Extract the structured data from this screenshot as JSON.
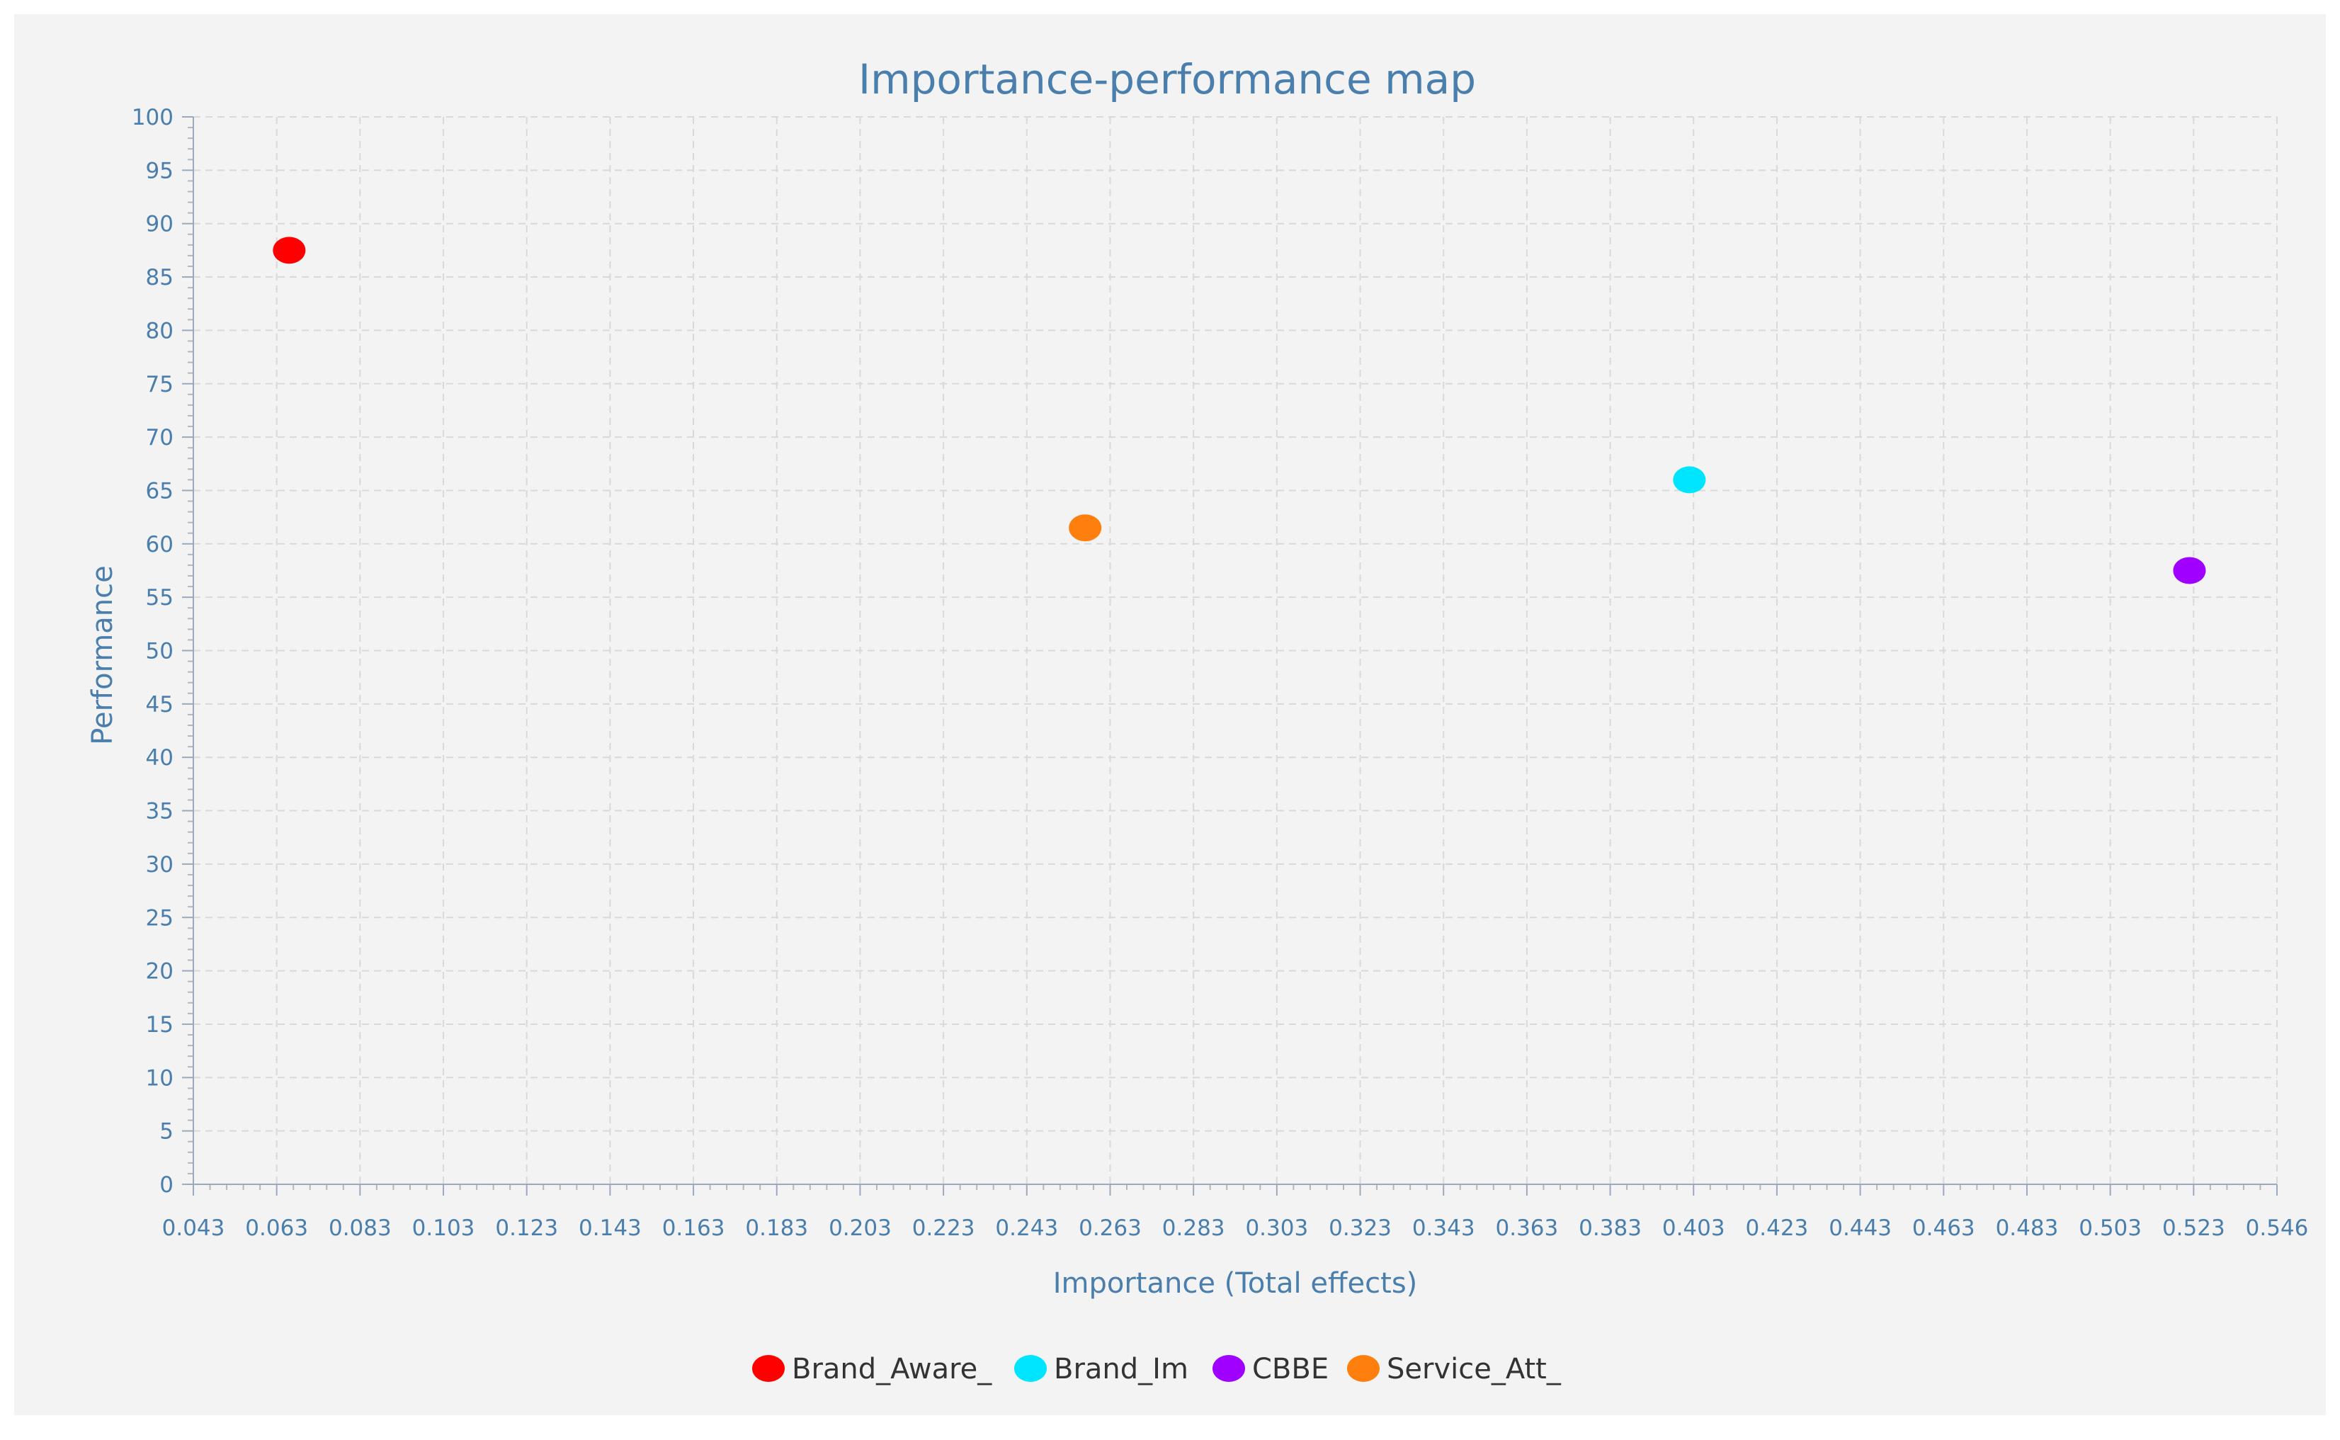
{
  "chart_data": {
    "type": "scatter",
    "title": "Importance-performance map",
    "xlabel": "Importance (Total effects)",
    "ylabel": "Performance",
    "xlim": [
      0.043,
      0.546
    ],
    "ylim": [
      0,
      100
    ],
    "x_ticks": [
      "0.043",
      "0.063",
      "0.083",
      "0.103",
      "0.123",
      "0.143",
      "0.163",
      "0.183",
      "0.203",
      "0.223",
      "0.243",
      "0.263",
      "0.283",
      "0.303",
      "0.323",
      "0.343",
      "0.363",
      "0.383",
      "0.403",
      "0.423",
      "0.443",
      "0.463",
      "0.483",
      "0.503",
      "0.523",
      "0.546"
    ],
    "y_ticks": [
      "0",
      "5",
      "10",
      "15",
      "20",
      "25",
      "30",
      "35",
      "40",
      "45",
      "50",
      "55",
      "60",
      "65",
      "70",
      "75",
      "80",
      "85",
      "90",
      "95",
      "100"
    ],
    "grid": true,
    "legend_position": "bottom-center",
    "series": [
      {
        "name": "Brand_Aware_",
        "color": "#ff0000",
        "x": 0.066,
        "y": 87.5
      },
      {
        "name": "Brand_Im",
        "color": "#00e5ff",
        "x": 0.402,
        "y": 66.0
      },
      {
        "name": "CBBE",
        "color": "#a000ff",
        "x": 0.522,
        "y": 57.5
      },
      {
        "name": "Service_Att_",
        "color": "#ff7f0e",
        "x": 0.257,
        "y": 61.5
      }
    ]
  }
}
